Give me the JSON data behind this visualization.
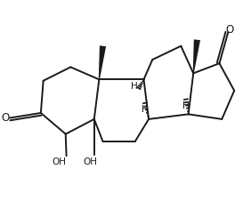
{
  "bg_color": "#ffffff",
  "line_color": "#1a1a1a",
  "lw": 1.4,
  "figsize": [
    2.82,
    2.28
  ],
  "dpi": 100,
  "xlim": [
    0.0,
    10.0
  ],
  "ylim": [
    0.5,
    8.0
  ]
}
